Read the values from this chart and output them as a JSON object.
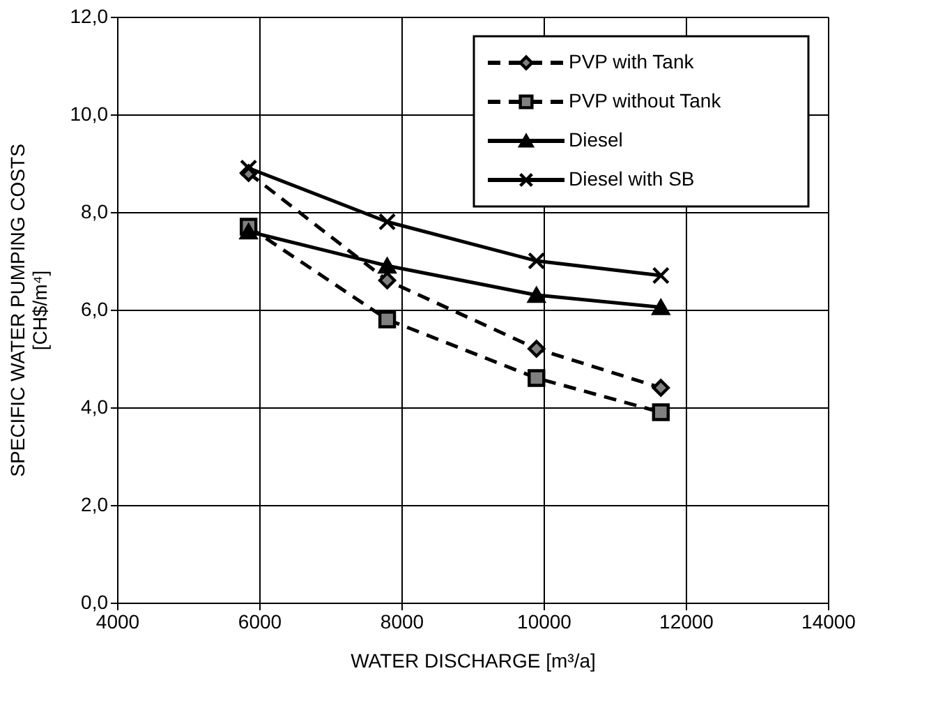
{
  "chart_data": {
    "type": "line",
    "xlabel": "WATER DISCHARGE [m³/a]",
    "ylabel": "SPECIFIC WATER PUMPING COSTS\n[CH$/m⁴]",
    "x": [
      5850,
      7800,
      9900,
      11650
    ],
    "series": [
      {
        "name": "PVP with Tank",
        "color": "#000000",
        "marker": "diamond",
        "line_style": "dashed",
        "values": [
          8.8,
          6.6,
          5.2,
          4.4
        ]
      },
      {
        "name": "PVP without Tank",
        "color": "#000000",
        "marker": "square",
        "line_style": "dashed",
        "values": [
          7.7,
          5.8,
          4.6,
          3.9
        ]
      },
      {
        "name": "Diesel",
        "color": "#000000",
        "marker": "triangle",
        "line_style": "solid",
        "values": [
          7.6,
          6.9,
          6.3,
          6.05
        ]
      },
      {
        "name": "Diesel with SB",
        "color": "#000000",
        "marker": "cross",
        "line_style": "solid",
        "values": [
          8.9,
          7.8,
          7.0,
          6.7
        ]
      }
    ],
    "xlim": [
      4000,
      14000
    ],
    "xticks": [
      4000,
      6000,
      8000,
      10000,
      12000,
      14000
    ],
    "ylim": [
      0,
      12
    ],
    "yticks": [
      {
        "value": 0,
        "label": "0,0"
      },
      {
        "value": 2,
        "label": "2,0"
      },
      {
        "value": 4,
        "label": "4,0"
      },
      {
        "value": 6,
        "label": "6,0"
      },
      {
        "value": 8,
        "label": "8,0"
      },
      {
        "value": 10,
        "label": "10,0"
      },
      {
        "value": 12,
        "label": "12,0"
      }
    ],
    "grid": true,
    "legend": "top right"
  }
}
